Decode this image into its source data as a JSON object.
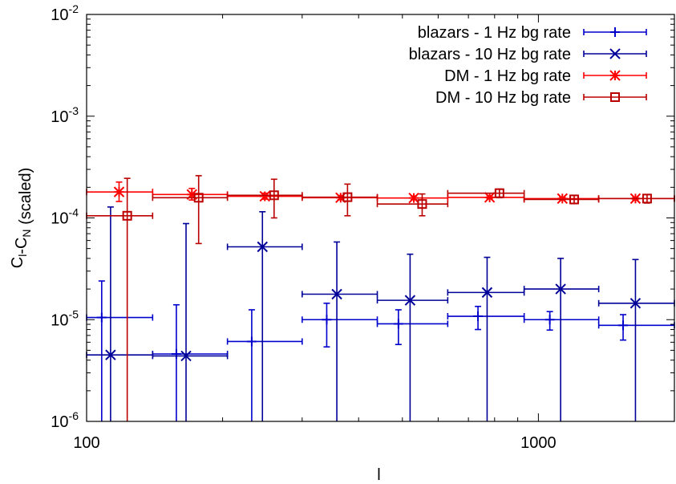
{
  "chart_data": {
    "type": "scatter",
    "title": "",
    "xlabel": "l",
    "ylabel": "C_l-C_N (scaled)",
    "x_scale": "log",
    "y_scale": "log",
    "xlim": [
      100,
      2000
    ],
    "ylim": [
      1e-06,
      0.01
    ],
    "x_ticks": [
      {
        "value": 100,
        "label": "100"
      },
      {
        "value": 1000,
        "label": "1000"
      }
    ],
    "y_ticks": [
      {
        "value": 1e-06,
        "base": "10",
        "exp": "-6"
      },
      {
        "value": 1e-05,
        "base": "10",
        "exp": "-5"
      },
      {
        "value": 0.0001,
        "base": "10",
        "exp": "-4"
      },
      {
        "value": 0.001,
        "base": "10",
        "exp": "-3"
      },
      {
        "value": 0.01,
        "base": "10",
        "exp": "-2"
      }
    ],
    "grid": false,
    "legend_position": "top-right",
    "series": [
      {
        "name": "blazars - 1 Hz bg rate",
        "color": "#0000cc",
        "marker": "plus",
        "points": [
          {
            "x": 108,
            "y": 1.05e-05,
            "xlo": 100,
            "xhi": 140,
            "ylo": 1e-06,
            "yhi": 2.4e-05
          },
          {
            "x": 158,
            "y": 4.6e-06,
            "xlo": 140,
            "xhi": 205,
            "ylo": 1e-06,
            "yhi": 1.4e-05
          },
          {
            "x": 232,
            "y": 6.1e-06,
            "xlo": 205,
            "xhi": 300,
            "ylo": 1e-06,
            "yhi": 1.25e-05
          },
          {
            "x": 340,
            "y": 1e-05,
            "xlo": 300,
            "xhi": 440,
            "ylo": 5.4e-06,
            "yhi": 1.45e-05
          },
          {
            "x": 490,
            "y": 9.1e-06,
            "xlo": 440,
            "xhi": 630,
            "ylo": 5.7e-06,
            "yhi": 1.25e-05
          },
          {
            "x": 735,
            "y": 1.08e-05,
            "xlo": 630,
            "xhi": 930,
            "ylo": 8e-06,
            "yhi": 1.35e-05
          },
          {
            "x": 1060,
            "y": 1e-05,
            "xlo": 930,
            "xhi": 1360,
            "ylo": 7.9e-06,
            "yhi": 1.2e-05
          },
          {
            "x": 1540,
            "y": 8.8e-06,
            "xlo": 1360,
            "xhi": 2000,
            "ylo": 6.3e-06,
            "yhi": 1.12e-05
          }
        ]
      },
      {
        "name": "blazars - 10 Hz bg rate",
        "color": "#000099",
        "marker": "cross",
        "points": [
          {
            "x": 113,
            "y": 4.5e-06,
            "xlo": 100,
            "xhi": 140,
            "ylo": 1e-06,
            "yhi": 0.000128
          },
          {
            "x": 166,
            "y": 4.4e-06,
            "xlo": 140,
            "xhi": 205,
            "ylo": 1e-06,
            "yhi": 8.8e-05
          },
          {
            "x": 245,
            "y": 5.2e-05,
            "xlo": 205,
            "xhi": 300,
            "ylo": 1e-06,
            "yhi": 0.000115
          },
          {
            "x": 358,
            "y": 1.78e-05,
            "xlo": 300,
            "xhi": 440,
            "ylo": 1e-06,
            "yhi": 5.8e-05
          },
          {
            "x": 520,
            "y": 1.55e-05,
            "xlo": 440,
            "xhi": 630,
            "ylo": 1e-06,
            "yhi": 4.4e-05
          },
          {
            "x": 770,
            "y": 1.85e-05,
            "xlo": 630,
            "xhi": 930,
            "ylo": 1e-06,
            "yhi": 4.1e-05
          },
          {
            "x": 1120,
            "y": 2e-05,
            "xlo": 930,
            "xhi": 1360,
            "ylo": 1e-06,
            "yhi": 4e-05
          },
          {
            "x": 1640,
            "y": 1.45e-05,
            "xlo": 1360,
            "xhi": 2000,
            "ylo": 1e-06,
            "yhi": 3.9e-05
          }
        ]
      },
      {
        "name": "DM - 1 Hz bg rate",
        "color": "#ff0000",
        "marker": "star",
        "points": [
          {
            "x": 118,
            "y": 0.00018,
            "xlo": 100,
            "xhi": 140,
            "ylo": 0.000145,
            "yhi": 0.000225
          },
          {
            "x": 171,
            "y": 0.00017,
            "xlo": 140,
            "xhi": 205,
            "ylo": 0.00015,
            "yhi": 0.000195
          },
          {
            "x": 248,
            "y": 0.000163,
            "xlo": 205,
            "xhi": 300,
            "ylo": 0.000153,
            "yhi": 0.000175
          },
          {
            "x": 365,
            "y": 0.000158,
            "xlo": 300,
            "xhi": 440,
            "ylo": 0.000151,
            "yhi": 0.000166
          },
          {
            "x": 530,
            "y": 0.000157,
            "xlo": 440,
            "xhi": 630,
            "ylo": 0.000151,
            "yhi": 0.000164
          },
          {
            "x": 780,
            "y": 0.000159,
            "xlo": 630,
            "xhi": 930,
            "ylo": 0.000154,
            "yhi": 0.000165
          },
          {
            "x": 1130,
            "y": 0.000155,
            "xlo": 930,
            "xhi": 1360,
            "ylo": 0.000151,
            "yhi": 0.00016
          },
          {
            "x": 1640,
            "y": 0.000155,
            "xlo": 1360,
            "xhi": 2000,
            "ylo": 0.000151,
            "yhi": 0.000159
          }
        ]
      },
      {
        "name": "DM - 10 Hz bg rate",
        "color": "#bb0000",
        "marker": "square",
        "points": [
          {
            "x": 123,
            "y": 0.000105,
            "xlo": 100,
            "xhi": 140,
            "ylo": 1e-06,
            "yhi": 0.000245
          },
          {
            "x": 177,
            "y": 0.000158,
            "xlo": 140,
            "xhi": 205,
            "ylo": 5.6e-05,
            "yhi": 0.00026
          },
          {
            "x": 260,
            "y": 0.000167,
            "xlo": 205,
            "xhi": 300,
            "ylo": 0.0001,
            "yhi": 0.00024
          },
          {
            "x": 378,
            "y": 0.00016,
            "xlo": 300,
            "xhi": 440,
            "ylo": 0.000105,
            "yhi": 0.000215
          },
          {
            "x": 553,
            "y": 0.000137,
            "xlo": 440,
            "xhi": 630,
            "ylo": 0.000105,
            "yhi": 0.000172
          },
          {
            "x": 820,
            "y": 0.000175,
            "xlo": 630,
            "xhi": 930,
            "ylo": 0.000158,
            "yhi": 0.000192
          },
          {
            "x": 1200,
            "y": 0.000152,
            "xlo": 930,
            "xhi": 1360,
            "ylo": 0.000138,
            "yhi": 0.000167
          },
          {
            "x": 1740,
            "y": 0.000155,
            "xlo": 1360,
            "xhi": 2000,
            "ylo": 0.00014,
            "yhi": 0.00017
          }
        ]
      }
    ]
  }
}
